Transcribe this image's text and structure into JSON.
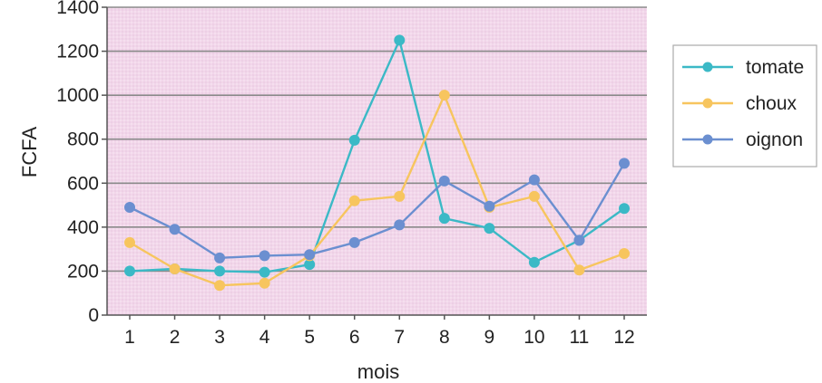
{
  "chart_data": {
    "type": "line",
    "xlabel": "mois",
    "ylabel": "FCFA",
    "x": [
      1,
      2,
      3,
      4,
      5,
      6,
      7,
      8,
      9,
      10,
      11,
      12
    ],
    "x_tick_labels": [
      "1",
      "2",
      "3",
      "4",
      "5",
      "6",
      "7",
      "8",
      "9",
      "10",
      "11",
      "12"
    ],
    "y_ticks": [
      0,
      200,
      400,
      600,
      800,
      1000,
      1200,
      1400
    ],
    "y_tick_labels": [
      "0",
      "200",
      "400",
      "600",
      "800",
      "1000",
      "1200",
      "1400"
    ],
    "ylim": [
      0,
      1400
    ],
    "grid": true,
    "legend_position": "right",
    "plot_background": "#f2d6ea",
    "grid_color": "#8a8a8a",
    "series": [
      {
        "name": "tomate",
        "color": "#3bb9c6",
        "values": [
          200,
          210,
          200,
          195,
          230,
          795,
          1250,
          440,
          395,
          240,
          340,
          485
        ]
      },
      {
        "name": "choux",
        "color": "#f7c55e",
        "values": [
          330,
          210,
          135,
          145,
          270,
          520,
          540,
          1000,
          490,
          540,
          205,
          280
        ]
      },
      {
        "name": "oignon",
        "color": "#6b8fd0",
        "values": [
          490,
          390,
          260,
          270,
          275,
          330,
          410,
          610,
          495,
          615,
          340,
          690
        ]
      }
    ]
  }
}
